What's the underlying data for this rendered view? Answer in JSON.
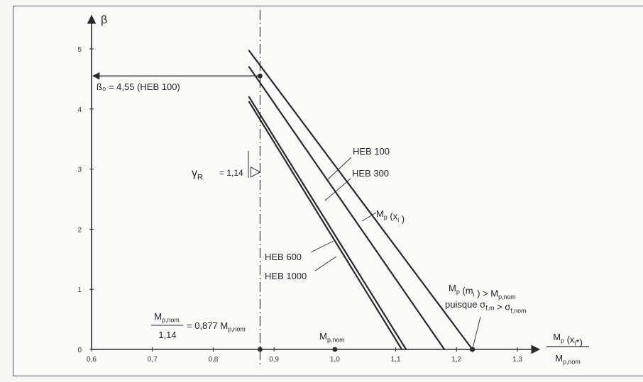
{
  "chart_data": {
    "type": "line",
    "ylabel": "β",
    "xlabel_numerator": "Mp (xi*)",
    "xlabel_denominator": "Mp,nom",
    "xlim": [
      0.6,
      1.35
    ],
    "ylim": [
      0,
      5
    ],
    "x_ticks": [
      "0,6",
      "0,7",
      "0,8",
      "0,9",
      "1,0",
      "1,1",
      "1,2",
      "1,3"
    ],
    "x_tick_values": [
      0.6,
      0.7,
      0.8,
      0.9,
      1.0,
      1.1,
      1.2,
      1.3
    ],
    "y_ticks": [
      "0",
      "1",
      "2",
      "3",
      "4",
      "5"
    ],
    "y_tick_values": [
      0,
      1,
      2,
      3,
      4,
      5
    ],
    "vertical_reference_x": 0.877,
    "series": [
      {
        "name": "HEB 100",
        "points": [
          [
            0.859,
            4.97
          ],
          [
            1.226,
            0
          ]
        ]
      },
      {
        "name": "HEB 300",
        "points": [
          [
            0.859,
            4.7
          ],
          [
            1.18,
            0
          ]
        ]
      },
      {
        "name": "HEB 600",
        "points": [
          [
            0.859,
            4.2
          ],
          [
            1.117,
            0
          ]
        ]
      },
      {
        "name": "HEB 1000",
        "points": [
          [
            0.859,
            4.12
          ],
          [
            1.11,
            0
          ]
        ]
      }
    ],
    "annotations": {
      "beta0": {
        "text": "ß₀ = 4,55 (HEB 100)",
        "x": 0.877,
        "y": 4.55
      },
      "gamma_r": {
        "text": "= 1,14",
        "symbol": "γR",
        "y": 2.95
      },
      "mp_xi": {
        "text": "Mp (xi)"
      },
      "mp_nom": {
        "text": "Mp,nom",
        "x": 1.0
      },
      "ratio_numerator": "Mp,nom",
      "ratio_denominator": "1,14",
      "ratio_result": "= 0,877 Mp,nom",
      "condition_line1": "Mp (mi) > Mp,nom",
      "condition_line2": "puisque σf,m > σf,nom",
      "end_point_x": 1.226
    },
    "labels": {
      "heb100": "HEB 100",
      "heb300": "HEB 300",
      "heb600": "HEB 600",
      "heb1000": "HEB 1000"
    },
    "colors": {
      "line": "#2a2a2a",
      "background": "#fbfbf9"
    }
  }
}
